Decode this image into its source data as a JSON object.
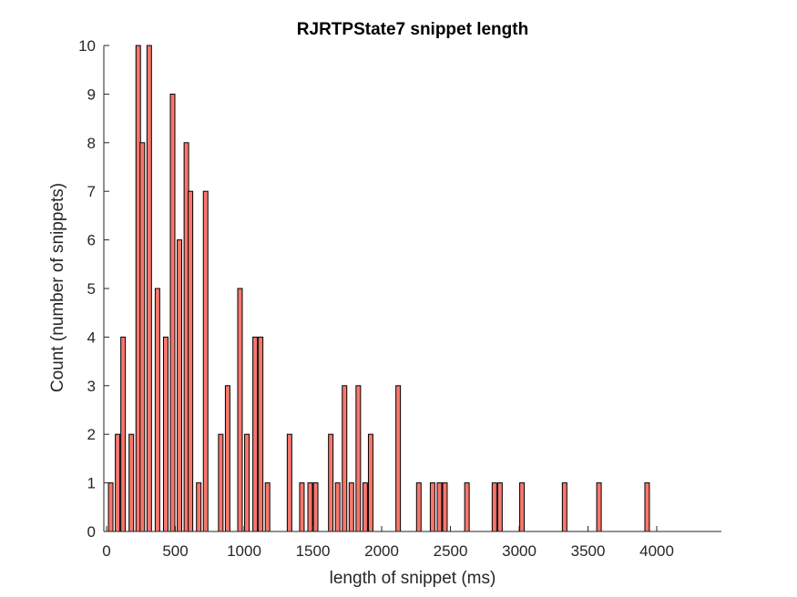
{
  "colors": {
    "bar_fill": "#F8766D",
    "bar_edge": "#000000",
    "axis": "#262626"
  },
  "chart_data": {
    "type": "bar",
    "title": "RJRTPState7 snippet length",
    "xlabel": "length of snippet (ms)",
    "ylabel": "Count (number of snippets)",
    "xlim": [
      -20,
      4470
    ],
    "ylim": [
      0,
      10
    ],
    "xticks": [
      0,
      500,
      1000,
      1500,
      2000,
      2500,
      3000,
      3500,
      4000
    ],
    "yticks": [
      0,
      1,
      2,
      3,
      4,
      5,
      6,
      7,
      8,
      9,
      10
    ],
    "bin_width": 33,
    "grid": false,
    "x": [
      30,
      80,
      120,
      180,
      230,
      260,
      310,
      370,
      430,
      480,
      530,
      580,
      610,
      670,
      720,
      830,
      880,
      970,
      1020,
      1080,
      1120,
      1170,
      1330,
      1420,
      1480,
      1520,
      1630,
      1680,
      1730,
      1780,
      1830,
      1880,
      1920,
      2120,
      2270,
      2370,
      2420,
      2460,
      2620,
      2820,
      2860,
      3020,
      3330,
      3580,
      3930
    ],
    "values": [
      1,
      2,
      4,
      2,
      10,
      8,
      10,
      5,
      4,
      9,
      6,
      8,
      7,
      1,
      7,
      2,
      3,
      5,
      2,
      4,
      4,
      1,
      2,
      1,
      1,
      1,
      2,
      1,
      3,
      1,
      3,
      1,
      2,
      3,
      1,
      1,
      1,
      1,
      1,
      1,
      1,
      1,
      1,
      1,
      1
    ]
  }
}
